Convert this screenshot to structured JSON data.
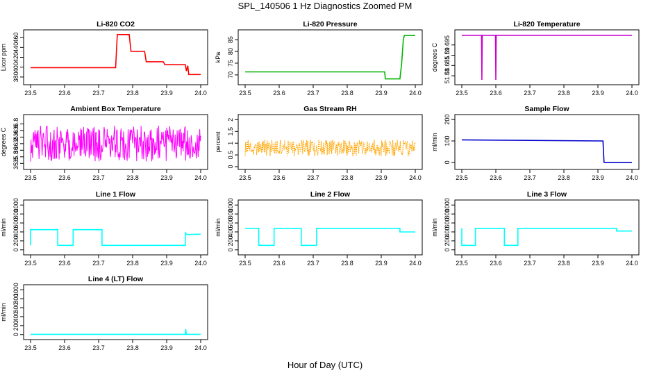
{
  "figure": {
    "title": "SPL_140506  1 Hz Diagnostics Zoomed PM",
    "xlabel": "Hour of Day (UTC)"
  },
  "chart_data": [
    {
      "type": "line",
      "title": "Li-820 CO2",
      "ylabel": "Licor ppm",
      "color": "#ff0000",
      "xlim": [
        23.5,
        24.0
      ],
      "xticks": [
        "23.5",
        "23.6",
        "23.7",
        "23.8",
        "23.9",
        "24.0"
      ],
      "ylim": [
        370,
        470
      ],
      "yticks": [
        380,
        400,
        420,
        440,
        460
      ],
      "series": [
        {
          "x": [
            23.5,
            23.75,
            23.755,
            23.79,
            23.795,
            23.835,
            23.84,
            23.89,
            23.895,
            23.955,
            23.958,
            23.962,
            23.965,
            24.0
          ],
          "values": [
            399,
            399,
            466,
            466,
            432,
            432,
            411,
            411,
            405,
            405,
            392,
            403,
            385,
            385
          ]
        }
      ]
    },
    {
      "type": "line",
      "title": "Li-820 Pressure",
      "ylabel": "kPa",
      "color": "#00b400",
      "xlim": [
        23.5,
        24.0
      ],
      "xticks": [
        "23.5",
        "23.6",
        "23.7",
        "23.8",
        "23.9",
        "24.0"
      ],
      "ylim": [
        67,
        88
      ],
      "yticks": [
        70,
        75,
        80,
        85
      ],
      "series": [
        {
          "x": [
            23.5,
            23.91,
            23.912,
            23.955,
            23.96,
            23.965,
            23.968,
            24.0
          ],
          "values": [
            71.3,
            71.3,
            68.3,
            68.3,
            75,
            85,
            86.8,
            86.8
          ]
        }
      ]
    },
    {
      "type": "line",
      "title": "Li-820 Temperature",
      "ylabel": "degrees C",
      "color": "#cc00cc",
      "xlim": [
        23.5,
        24.0
      ],
      "xticks": [
        "23.5",
        "23.6",
        "23.7",
        "23.8",
        "23.9",
        "24.0"
      ],
      "ylim": [
        51.677,
        51.701
      ],
      "yticks": [
        51.68,
        51.685,
        51.69,
        51.695
      ],
      "series": [
        {
          "x": [
            23.5,
            23.558,
            23.559,
            23.56,
            23.599,
            23.6,
            23.601,
            24.0
          ],
          "values": [
            51.6997,
            51.6997,
            51.678,
            51.6997,
            51.6997,
            51.678,
            51.6997,
            51.6997
          ]
        }
      ]
    },
    {
      "type": "line",
      "title": "Ambient Box Temperature",
      "ylabel": "degrees C",
      "color": "#ff00ff",
      "xlim": [
        23.5,
        24.0
      ],
      "xticks": [
        "23.5",
        "23.6",
        "23.7",
        "23.8",
        "23.9",
        "24.0"
      ],
      "ylim": [
        35.5,
        37.0
      ],
      "yticks": [
        35.6,
        35.8,
        36.0,
        36.2,
        36.4,
        36.6,
        36.8
      ],
      "noise": {
        "center": 36.2,
        "amplitude": 0.55
      }
    },
    {
      "type": "line",
      "title": "Gas Stream RH",
      "ylabel": "percent",
      "color": "#ffa500",
      "xlim": [
        23.5,
        24.0
      ],
      "xticks": [
        "23.5",
        "23.6",
        "23.7",
        "23.8",
        "23.9",
        "24.0"
      ],
      "ylim": [
        0.0,
        2.1
      ],
      "yticks": [
        0.0,
        0.5,
        1.0,
        1.5,
        2.0
      ],
      "noise": {
        "center": 0.8,
        "amplitude": 0.35
      }
    },
    {
      "type": "line",
      "title": "Sample Flow",
      "ylabel": "ml/min",
      "color": "#0000cd",
      "xlim": [
        23.5,
        24.0
      ],
      "xticks": [
        "23.5",
        "23.6",
        "23.7",
        "23.8",
        "23.9",
        "24.0"
      ],
      "ylim": [
        -20,
        210
      ],
      "yticks": [
        0,
        100,
        200
      ],
      "series": [
        {
          "x": [
            23.5,
            23.915,
            23.918,
            24.0
          ],
          "values": [
            105,
            100,
            0,
            0
          ]
        }
      ]
    },
    {
      "type": "line",
      "title": "Line 1 Flow",
      "ylabel": "ml/min",
      "color": "#00ffff",
      "xlim": [
        23.5,
        24.0
      ],
      "xticks": [
        "23.5",
        "23.6",
        "23.7",
        "23.8",
        "23.9",
        "24.0"
      ],
      "ylim": [
        -50,
        1050
      ],
      "yticks": [
        0,
        200,
        400,
        600,
        800,
        1000
      ],
      "series": [
        {
          "x": [
            23.5,
            23.5,
            23.58,
            23.58,
            23.625,
            23.625,
            23.71,
            23.71,
            23.955,
            23.955,
            23.96,
            24.0
          ],
          "values": [
            100,
            450,
            450,
            100,
            100,
            450,
            450,
            100,
            100,
            380,
            340,
            350
          ]
        }
      ]
    },
    {
      "type": "line",
      "title": "Line 2 Flow",
      "ylabel": "ml/min",
      "color": "#00ffff",
      "xlim": [
        23.5,
        24.0
      ],
      "xticks": [
        "23.5",
        "23.6",
        "23.7",
        "23.8",
        "23.9",
        "24.0"
      ],
      "ylim": [
        -50,
        1050
      ],
      "yticks": [
        0,
        200,
        400,
        600,
        800,
        1000
      ],
      "series": [
        {
          "x": [
            23.5,
            23.5,
            23.54,
            23.54,
            23.585,
            23.585,
            23.665,
            23.665,
            23.71,
            23.71,
            23.955,
            23.955,
            24.0
          ],
          "values": [
            480,
            480,
            480,
            100,
            100,
            480,
            480,
            100,
            100,
            480,
            480,
            400,
            400
          ]
        }
      ]
    },
    {
      "type": "line",
      "title": "Line 3 Flow",
      "ylabel": "ml/min",
      "color": "#00ffff",
      "xlim": [
        23.5,
        24.0
      ],
      "xticks": [
        "23.5",
        "23.6",
        "23.7",
        "23.8",
        "23.9",
        "24.0"
      ],
      "ylim": [
        -50,
        1050
      ],
      "yticks": [
        0,
        200,
        400,
        600,
        800,
        1000
      ],
      "series": [
        {
          "x": [
            23.5,
            23.5,
            23.54,
            23.54,
            23.625,
            23.625,
            23.665,
            23.665,
            23.955,
            23.955,
            24.0
          ],
          "values": [
            480,
            100,
            100,
            480,
            480,
            100,
            100,
            480,
            480,
            420,
            420
          ]
        }
      ]
    },
    {
      "type": "line",
      "title": "Line 4 (LT) Flow",
      "ylabel": "ml/min",
      "color": "#00ffff",
      "xlim": [
        23.5,
        24.0
      ],
      "xticks": [
        "23.5",
        "23.6",
        "23.7",
        "23.8",
        "23.9",
        "24.0"
      ],
      "ylim": [
        -50,
        1050
      ],
      "yticks": [
        0,
        200,
        400,
        600,
        800,
        1000
      ],
      "series": [
        {
          "x": [
            23.5,
            23.955,
            23.956,
            23.958,
            23.96,
            24.0
          ],
          "values": [
            5,
            5,
            120,
            5,
            5,
            5
          ]
        }
      ]
    }
  ]
}
